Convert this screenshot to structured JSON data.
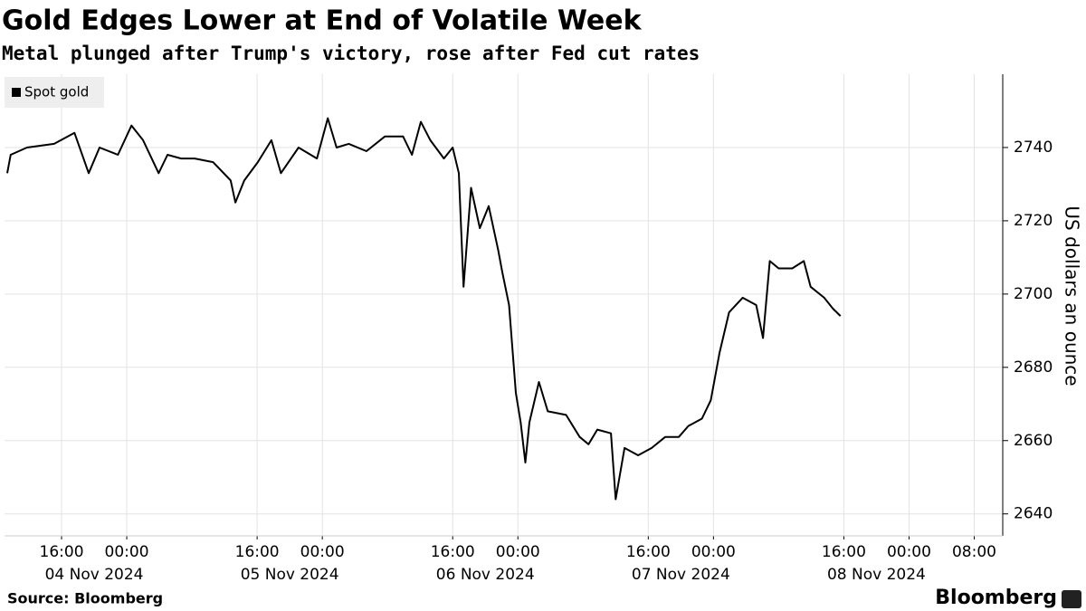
{
  "chart_data": {
    "type": "line",
    "title": "Gold Edges Lower at End of Volatile Week",
    "subtitle": "Metal plunged after Trump's victory, rose after Fed cut rates",
    "y_label": "US dollars an ounce",
    "source": "Source: Bloomberg",
    "brand": "Bloomberg",
    "x": [
      "2024-11-04 09:20",
      "2024-11-04 09:45",
      "2024-11-04 11:45",
      "2024-11-04 15:05",
      "2024-11-04 17:35",
      "2024-11-04 19:20",
      "2024-11-04 20:40",
      "2024-11-04 22:55",
      "2024-11-05 00:35",
      "2024-11-05 02:00",
      "2024-11-05 03:55",
      "2024-11-05 05:00",
      "2024-11-05 06:40",
      "2024-11-05 08:20",
      "2024-11-05 10:35",
      "2024-11-05 12:45",
      "2024-11-05 13:20",
      "2024-11-05 14:25",
      "2024-11-05 16:05",
      "2024-11-05 17:45",
      "2024-11-05 18:55",
      "2024-11-05 21:05",
      "2024-11-05 23:20",
      "2024-11-06 00:40",
      "2024-11-06 01:45",
      "2024-11-06 03:15",
      "2024-11-06 05:25",
      "2024-11-06 07:40",
      "2024-11-06 09:55",
      "2024-11-06 11:00",
      "2024-11-06 12:05",
      "2024-11-06 13:15",
      "2024-11-06 14:55",
      "2024-11-06 16:00",
      "2024-11-06 16:45",
      "2024-11-06 17:20",
      "2024-11-06 18:15",
      "2024-11-06 19:20",
      "2024-11-06 20:25",
      "2024-11-06 21:35",
      "2024-11-06 22:05",
      "2024-11-06 22:55",
      "2024-11-06 23:45",
      "2024-11-07 00:20",
      "2024-11-07 00:55",
      "2024-11-07 01:25",
      "2024-11-07 02:35",
      "2024-11-07 03:40",
      "2024-11-07 05:55",
      "2024-11-07 07:35",
      "2024-11-07 08:40",
      "2024-11-07 09:45",
      "2024-11-07 11:25",
      "2024-11-07 12:00",
      "2024-11-07 13:05",
      "2024-11-07 14:45",
      "2024-11-07 16:25",
      "2024-11-07 18:05",
      "2024-11-07 19:45",
      "2024-11-07 20:55",
      "2024-11-07 22:35",
      "2024-11-07 23:40",
      "2024-11-08 00:45",
      "2024-11-08 01:55",
      "2024-11-08 03:35",
      "2024-11-08 05:15",
      "2024-11-08 06:05",
      "2024-11-08 06:55",
      "2024-11-08 08:00",
      "2024-11-08 09:40",
      "2024-11-08 11:05",
      "2024-11-08 11:55",
      "2024-11-08 13:35",
      "2024-11-08 14:40",
      "2024-11-08 15:35"
    ],
    "series": [
      {
        "name": "Spot gold",
        "color": "#000000",
        "values": [
          2733,
          2738,
          2740,
          2741,
          2744,
          2733,
          2740,
          2738,
          2746,
          2742,
          2733,
          2738,
          2737,
          2737,
          2736,
          2731,
          2725,
          2731,
          2736,
          2742,
          2733,
          2740,
          2737,
          2748,
          2740,
          2741,
          2739,
          2743,
          2743,
          2738,
          2747,
          2742,
          2737,
          2740,
          2733,
          2702,
          2729,
          2718,
          2724,
          2712,
          2706,
          2697,
          2673,
          2665,
          2654,
          2665,
          2676,
          2668,
          2667,
          2661,
          2659,
          2663,
          2662,
          2644,
          2658,
          2656,
          2658,
          2661,
          2661,
          2664,
          2666,
          2671,
          2684,
          2695,
          2699,
          2697,
          2688,
          2709,
          2707,
          2707,
          2709,
          2702,
          2699,
          2696,
          2694
        ]
      }
    ],
    "xlim": [
      "2024-11-04 09:00",
      "2024-11-09 11:30"
    ],
    "xticks": [
      {
        "value": "2024-11-04 16:00",
        "label": "16:00"
      },
      {
        "value": "2024-11-05 00:00",
        "label": "00:00"
      },
      {
        "value": "2024-11-05 16:00",
        "label": "16:00"
      },
      {
        "value": "2024-11-06 00:00",
        "label": "00:00"
      },
      {
        "value": "2024-11-06 16:00",
        "label": "16:00"
      },
      {
        "value": "2024-11-07 00:00",
        "label": "00:00"
      },
      {
        "value": "2024-11-07 16:00",
        "label": "16:00"
      },
      {
        "value": "2024-11-08 00:00",
        "label": "00:00"
      },
      {
        "value": "2024-11-08 16:00",
        "label": "16:00"
      },
      {
        "value": "2024-11-09 00:00",
        "label": "00:00"
      },
      {
        "value": "2024-11-09 08:00",
        "label": "08:00"
      }
    ],
    "x_date_labels": [
      {
        "value": "2024-11-04 20:00",
        "label": "04 Nov 2024"
      },
      {
        "value": "2024-11-05 20:00",
        "label": "05 Nov 2024"
      },
      {
        "value": "2024-11-06 20:00",
        "label": "06 Nov 2024"
      },
      {
        "value": "2024-11-07 20:00",
        "label": "07 Nov 2024"
      },
      {
        "value": "2024-11-08 20:00",
        "label": "08 Nov 2024"
      }
    ],
    "ylim": [
      2634,
      2760
    ],
    "yticks": [
      2640,
      2660,
      2680,
      2700,
      2720,
      2740
    ],
    "grid": true,
    "legend": "top-left"
  }
}
